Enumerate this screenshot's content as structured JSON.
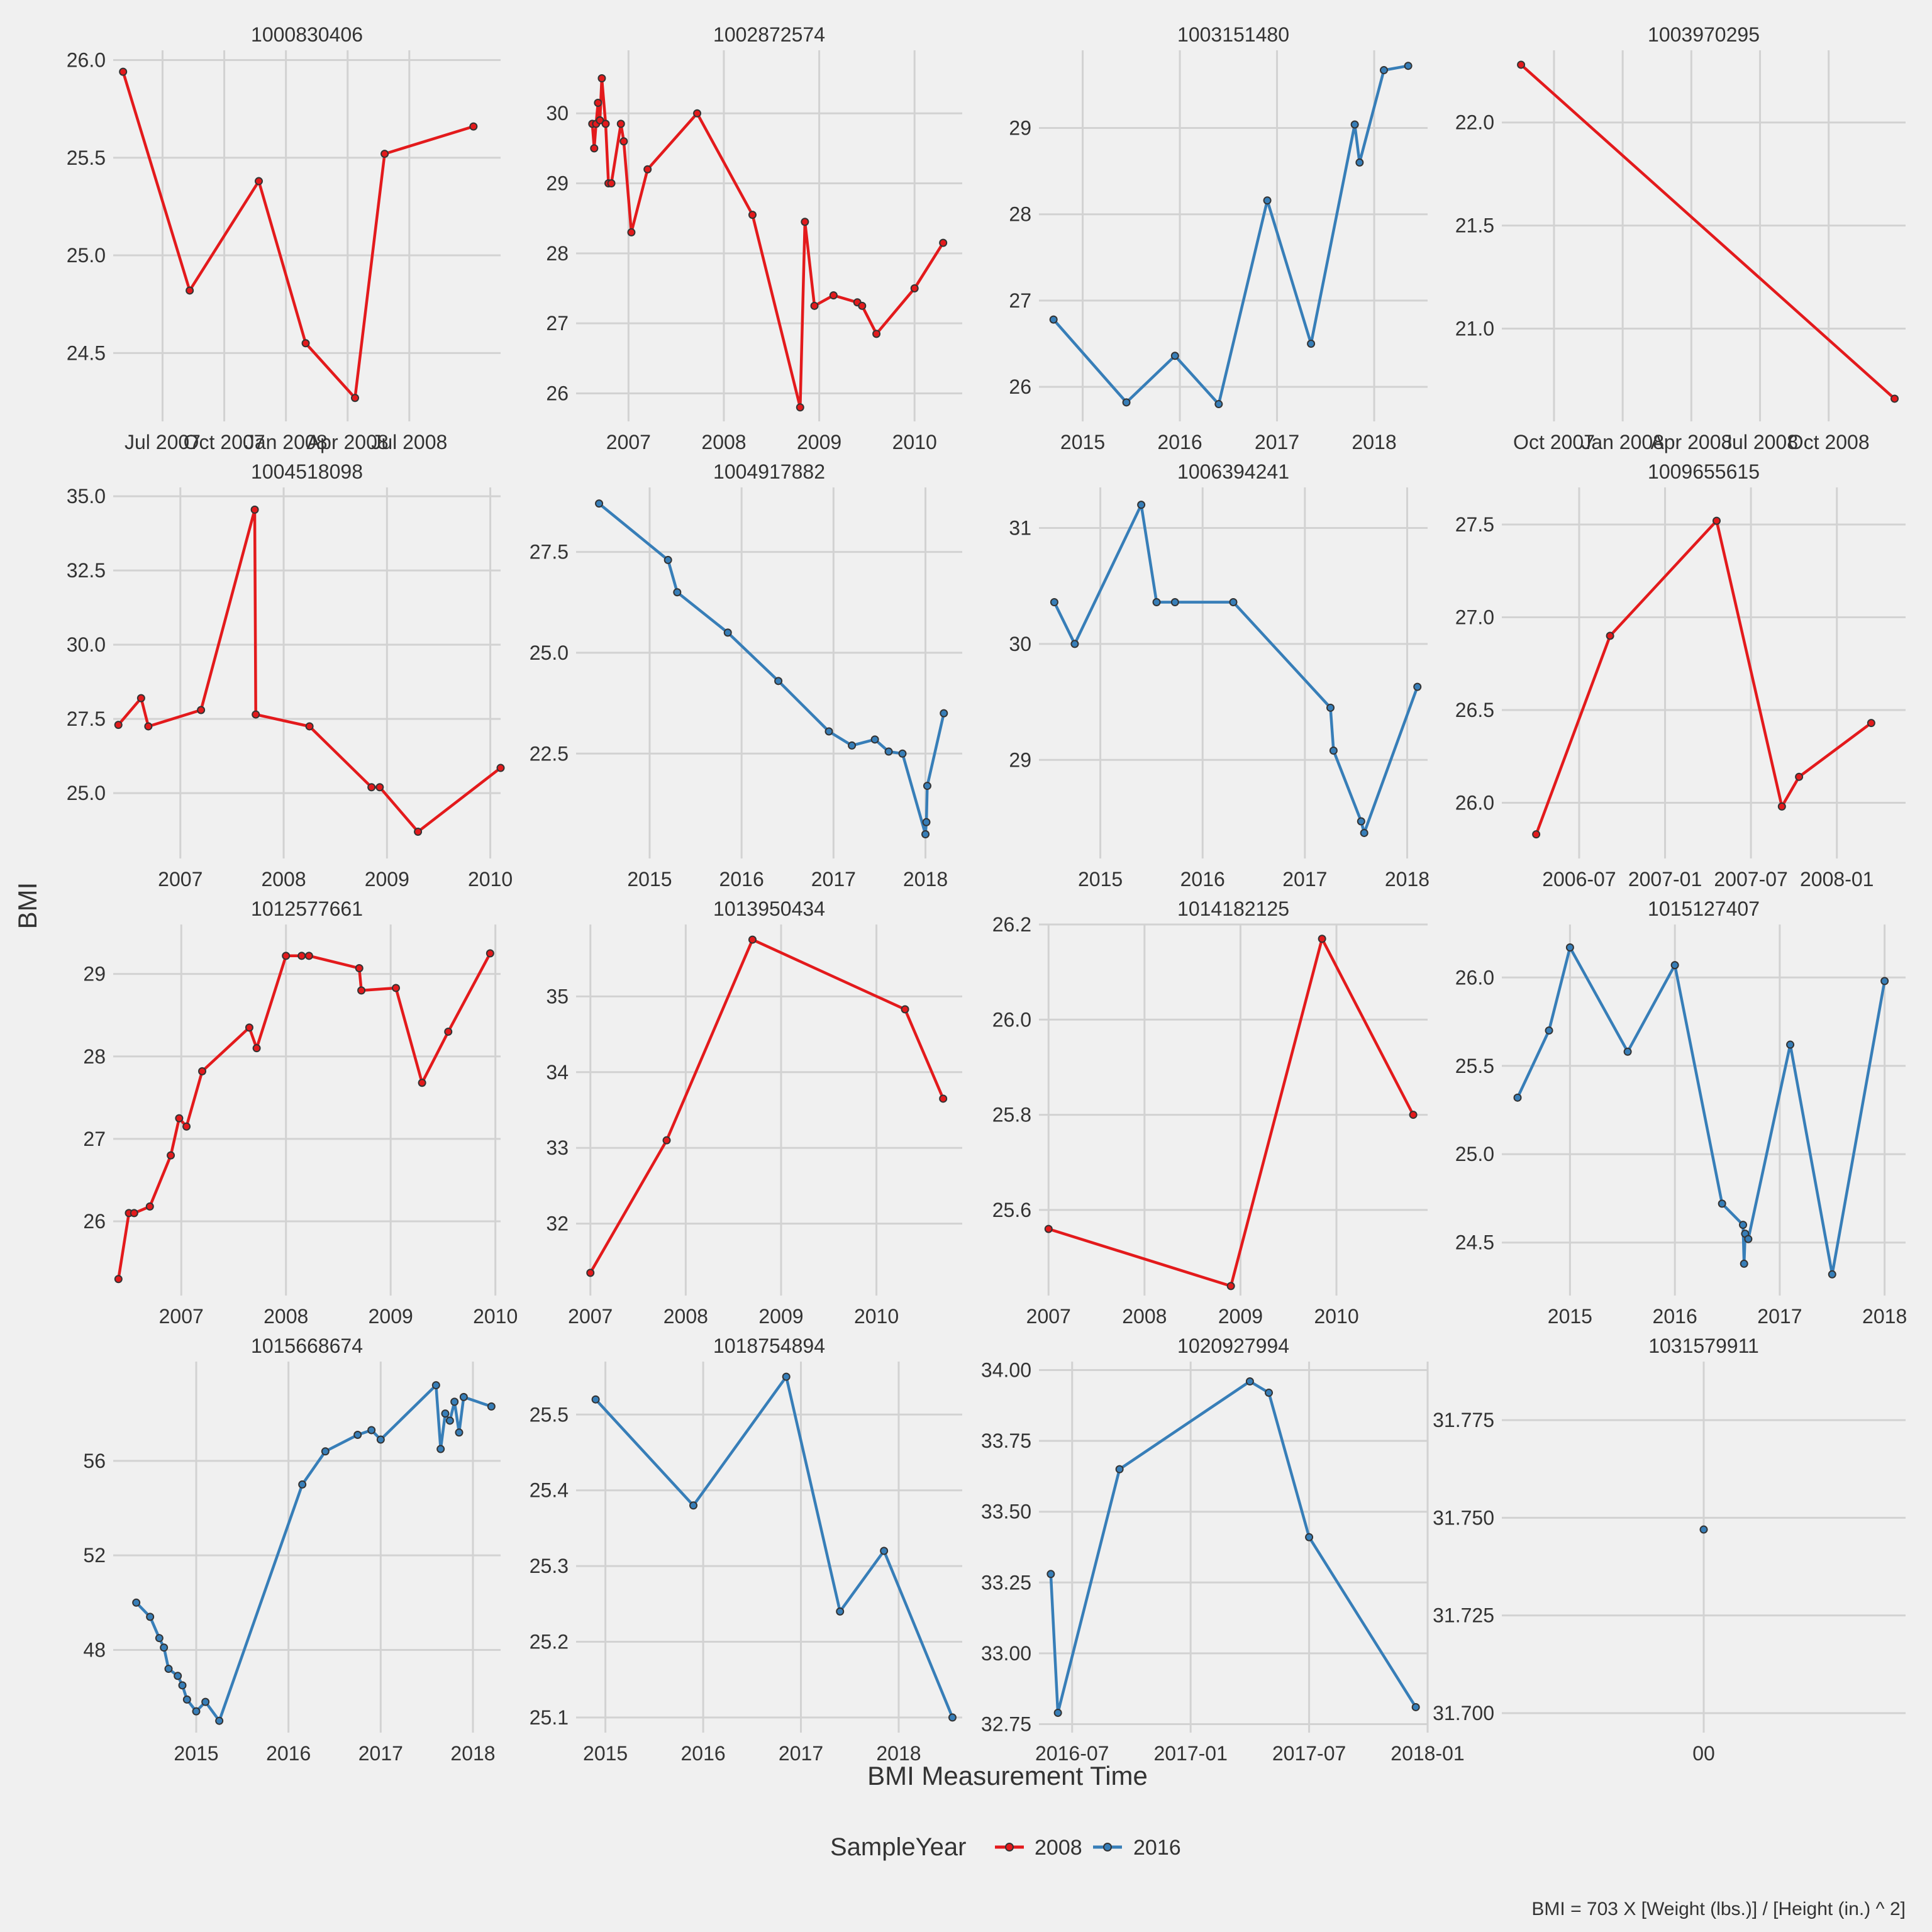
{
  "colors": {
    "2008": "#e31a1c",
    "2016": "#377eb8",
    "background": "#f0f0f0",
    "grid": "#d2d2d2",
    "point_outline": "#333333"
  },
  "legend": {
    "title": "SampleYear",
    "entries": [
      {
        "label": "2008",
        "color": "#e31a1c"
      },
      {
        "label": "2016",
        "color": "#377eb8"
      }
    ],
    "position": "bottom"
  },
  "labels": {
    "xlabel": "BMI Measurement Time",
    "ylabel": "BMI",
    "caption": "BMI = 703 X [Weight (lbs.)] / [Height (in.) ^ 2]"
  },
  "chart_data": [
    {
      "type": "line",
      "title": "1000830406",
      "series_name": "2008",
      "color": "#e31a1c",
      "xlim": [
        2007.29,
        2008.86
      ],
      "ylim": [
        24.15,
        26.05
      ],
      "x": [
        2007.33,
        2007.6,
        2007.88,
        2008.07,
        2008.27,
        2008.39,
        2008.75
      ],
      "y": [
        25.94,
        24.82,
        25.38,
        24.55,
        24.27,
        25.52,
        25.66
      ],
      "xticks": [
        2007.49,
        2007.74,
        2007.99,
        2008.24,
        2008.49
      ],
      "xticklabels": [
        "Jul 2007",
        "Oct 2007",
        "Jan 2008",
        "Apr 2008",
        "Jul 2008"
      ],
      "yticks": [
        24.5,
        25.0,
        25.5,
        26.0
      ],
      "yticklabels": [
        "24.5",
        "25.0",
        "25.5",
        "26.0"
      ]
    },
    {
      "type": "line",
      "title": "1002872574",
      "series_name": "2008",
      "color": "#e31a1c",
      "xlim": [
        2006.45,
        2010.5
      ],
      "ylim": [
        25.6,
        30.9
      ],
      "x": [
        2006.62,
        2006.64,
        2006.66,
        2006.68,
        2006.7,
        2006.72,
        2006.76,
        2006.79,
        2006.82,
        2006.92,
        2006.95,
        2007.03,
        2007.2,
        2007.72,
        2008.3,
        2008.8,
        2008.85,
        2008.95,
        2009.15,
        2009.4,
        2009.45,
        2009.6,
        2010.0,
        2010.3
      ],
      "y": [
        29.85,
        29.5,
        29.85,
        30.15,
        29.9,
        30.5,
        29.85,
        29.0,
        29.0,
        29.85,
        29.6,
        28.3,
        29.2,
        30.0,
        28.55,
        25.8,
        28.45,
        27.25,
        27.4,
        27.3,
        27.25,
        26.85,
        27.5,
        28.15
      ],
      "xticks": [
        2007,
        2008,
        2009,
        2010
      ],
      "xticklabels": [
        "2007",
        "2008",
        "2009",
        "2010"
      ],
      "yticks": [
        26,
        27,
        28,
        29,
        30
      ],
      "yticklabels": [
        "26",
        "27",
        "28",
        "29",
        "30"
      ]
    },
    {
      "type": "line",
      "title": "1003151480",
      "series_name": "2016",
      "color": "#377eb8",
      "xlim": [
        2014.55,
        2018.55
      ],
      "ylim": [
        25.6,
        29.9
      ],
      "x": [
        2014.7,
        2015.45,
        2015.95,
        2016.4,
        2016.9,
        2017.35,
        2017.8,
        2017.85,
        2018.1,
        2018.35
      ],
      "y": [
        26.78,
        25.82,
        26.36,
        25.8,
        28.16,
        26.5,
        29.04,
        28.6,
        29.67,
        29.72
      ],
      "xticks": [
        2015,
        2016,
        2017,
        2018
      ],
      "xticklabels": [
        "2015",
        "2016",
        "2017",
        "2018"
      ],
      "yticks": [
        26,
        27,
        28,
        29
      ],
      "yticklabels": [
        "26",
        "27",
        "28",
        "29"
      ]
    },
    {
      "type": "line",
      "title": "1003970295",
      "series_name": "2008",
      "color": "#e31a1c",
      "xlim": [
        2007.55,
        2009.02
      ],
      "ylim": [
        20.55,
        22.35
      ],
      "x": [
        2007.62,
        2008.98
      ],
      "y": [
        22.28,
        20.66
      ],
      "xticks": [
        2007.74,
        2007.99,
        2008.24,
        2008.49,
        2008.74
      ],
      "xticklabels": [
        "Oct 2007",
        "Jan 2008",
        "Apr 2008",
        "Jul 2008",
        "Oct 2008"
      ],
      "yticks": [
        21.0,
        21.5,
        22.0
      ],
      "yticklabels": [
        "21.0",
        "21.5",
        "22.0"
      ]
    },
    {
      "type": "line",
      "title": "1004518098",
      "series_name": "2008",
      "color": "#e31a1c",
      "xlim": [
        2006.35,
        2010.1
      ],
      "ylim": [
        22.8,
        35.3
      ],
      "x": [
        2006.4,
        2006.62,
        2006.69,
        2007.2,
        2007.72,
        2007.73,
        2008.25,
        2008.85,
        2008.93,
        2009.3,
        2010.1
      ],
      "y": [
        27.3,
        28.2,
        27.25,
        27.8,
        34.55,
        27.65,
        27.25,
        25.2,
        25.2,
        23.7,
        25.85
      ],
      "xticks": [
        2007,
        2008,
        2009,
        2010
      ],
      "xticklabels": [
        "2007",
        "2008",
        "2009",
        "2010"
      ],
      "yticks": [
        25.0,
        27.5,
        30.0,
        32.5,
        35.0
      ],
      "yticklabels": [
        "25.0",
        "27.5",
        "30.0",
        "32.5",
        "35.0"
      ]
    },
    {
      "type": "line",
      "title": "1004917882",
      "series_name": "2016",
      "color": "#377eb8",
      "xlim": [
        2014.2,
        2018.4
      ],
      "ylim": [
        19.9,
        29.1
      ],
      "x": [
        2014.45,
        2015.2,
        2015.3,
        2015.85,
        2016.4,
        2016.95,
        2017.2,
        2017.45,
        2017.6,
        2017.75,
        2018.0,
        2018.01,
        2018.02,
        2018.2
      ],
      "y": [
        28.7,
        27.3,
        26.5,
        25.5,
        24.3,
        23.05,
        22.7,
        22.85,
        22.55,
        22.5,
        20.5,
        20.8,
        21.7,
        23.5
      ],
      "xticks": [
        2015,
        2016,
        2017,
        2018
      ],
      "xticklabels": [
        "2015",
        "2016",
        "2017",
        "2018"
      ],
      "yticks": [
        22.5,
        25.0,
        27.5
      ],
      "yticklabels": [
        "22.5",
        "25.0",
        "27.5"
      ]
    },
    {
      "type": "line",
      "title": "1006394241",
      "series_name": "2016",
      "color": "#377eb8",
      "xlim": [
        2014.4,
        2018.2
      ],
      "ylim": [
        28.15,
        31.35
      ],
      "x": [
        2014.55,
        2014.75,
        2015.4,
        2015.55,
        2015.73,
        2016.3,
        2017.25,
        2017.28,
        2017.55,
        2017.58,
        2018.1
      ],
      "y": [
        30.36,
        30.0,
        31.2,
        30.36,
        30.36,
        30.36,
        29.45,
        29.08,
        28.47,
        28.37,
        29.63
      ],
      "xticks": [
        2015,
        2016,
        2017,
        2018
      ],
      "xticklabels": [
        "2015",
        "2016",
        "2017",
        "2018"
      ],
      "yticks": [
        29,
        30,
        31
      ],
      "yticklabels": [
        "29",
        "30",
        "31"
      ]
    },
    {
      "type": "line",
      "title": "1009655615",
      "series_name": "2008",
      "color": "#e31a1c",
      "xlim": [
        2006.05,
        2008.4
      ],
      "ylim": [
        25.7,
        27.7
      ],
      "x": [
        2006.25,
        2006.68,
        2007.3,
        2007.68,
        2007.78,
        2008.2
      ],
      "y": [
        25.83,
        26.9,
        27.52,
        25.98,
        26.14,
        26.43
      ],
      "xticks": [
        2006.5,
        2007.0,
        2007.5,
        2008.0
      ],
      "xticklabels": [
        "2006-07",
        "2007-01",
        "2007-07",
        "2008-01"
      ],
      "yticks": [
        26.0,
        26.5,
        27.0,
        27.5
      ],
      "yticklabels": [
        "26.0",
        "26.5",
        "27.0",
        "27.5"
      ]
    },
    {
      "type": "line",
      "title": "1012577661",
      "series_name": "2008",
      "color": "#e31a1c",
      "xlim": [
        2006.35,
        2010.05
      ],
      "ylim": [
        25.1,
        29.6
      ],
      "x": [
        2006.4,
        2006.5,
        2006.55,
        2006.7,
        2006.9,
        2006.98,
        2007.05,
        2007.2,
        2007.65,
        2007.72,
        2008.0,
        2008.15,
        2008.22,
        2008.7,
        2008.72,
        2009.05,
        2009.3,
        2009.55,
        2009.95
      ],
      "y": [
        25.3,
        26.1,
        26.1,
        26.18,
        26.8,
        27.25,
        27.15,
        27.82,
        28.35,
        28.1,
        29.22,
        29.22,
        29.22,
        29.07,
        28.8,
        28.83,
        27.68,
        28.3,
        29.25
      ],
      "xticks": [
        2007,
        2008,
        2009,
        2010
      ],
      "xticklabels": [
        "2007",
        "2008",
        "2009",
        "2010"
      ],
      "yticks": [
        26,
        27,
        28,
        29
      ],
      "yticklabels": [
        "26",
        "27",
        "28",
        "29"
      ]
    },
    {
      "type": "line",
      "title": "1013950434",
      "series_name": "2008",
      "color": "#e31a1c",
      "xlim": [
        2006.85,
        2010.9
      ],
      "ylim": [
        31.05,
        35.95
      ],
      "x": [
        2007.0,
        2007.8,
        2008.7,
        2010.3,
        2010.7
      ],
      "y": [
        31.35,
        33.1,
        35.75,
        34.83,
        33.65
      ],
      "xticks": [
        2007,
        2008,
        2009,
        2010
      ],
      "xticklabels": [
        "2007",
        "2008",
        "2009",
        "2010"
      ],
      "yticks": [
        32,
        33,
        34,
        35
      ],
      "yticklabels": [
        "32",
        "33",
        "34",
        "35"
      ]
    },
    {
      "type": "line",
      "title": "1014182125",
      "series_name": "2008",
      "color": "#e31a1c",
      "xlim": [
        2006.9,
        2010.95
      ],
      "ylim": [
        25.42,
        26.2
      ],
      "x": [
        2007.0,
        2008.9,
        2009.85,
        2010.8
      ],
      "y": [
        25.56,
        25.44,
        26.17,
        25.8
      ],
      "xticks": [
        2007,
        2008,
        2009,
        2010
      ],
      "xticklabels": [
        "2007",
        "2008",
        "2009",
        "2010"
      ],
      "yticks": [
        25.6,
        25.8,
        26.0,
        26.2
      ],
      "yticklabels": [
        "25.6",
        "25.8",
        "26.0",
        "26.2"
      ]
    },
    {
      "type": "line",
      "title": "1015127407",
      "series_name": "2016",
      "color": "#377eb8",
      "xlim": [
        2014.35,
        2018.2
      ],
      "ylim": [
        24.2,
        26.3
      ],
      "x": [
        2014.5,
        2014.8,
        2015.0,
        2015.55,
        2016.0,
        2016.45,
        2016.65,
        2016.66,
        2016.67,
        2016.7,
        2017.1,
        2017.5,
        2018.0
      ],
      "y": [
        25.32,
        25.7,
        26.17,
        25.58,
        26.07,
        24.72,
        24.6,
        24.38,
        24.55,
        24.52,
        25.62,
        24.32,
        25.98
      ],
      "xticks": [
        2015,
        2016,
        2017,
        2018
      ],
      "xticklabels": [
        "2015",
        "2016",
        "2017",
        "2018"
      ],
      "yticks": [
        24.5,
        25.0,
        25.5,
        26.0
      ],
      "yticklabels": [
        "24.5",
        "25.0",
        "25.5",
        "26.0"
      ]
    },
    {
      "type": "line",
      "title": "1015668674",
      "series_name": "2016",
      "color": "#377eb8",
      "xlim": [
        2014.1,
        2018.3
      ],
      "ylim": [
        44.5,
        60.2
      ],
      "x": [
        2014.35,
        2014.5,
        2014.6,
        2014.65,
        2014.7,
        2014.8,
        2014.85,
        2014.9,
        2015.0,
        2015.1,
        2015.25,
        2016.15,
        2016.4,
        2016.75,
        2016.9,
        2017.0,
        2017.6,
        2017.65,
        2017.7,
        2017.75,
        2017.8,
        2017.85,
        2017.9,
        2018.2
      ],
      "y": [
        50.0,
        49.4,
        48.5,
        48.1,
        47.2,
        46.9,
        46.5,
        45.9,
        45.4,
        45.8,
        45.0,
        55.0,
        56.4,
        57.1,
        57.3,
        56.9,
        59.2,
        56.5,
        58.0,
        57.7,
        58.5,
        57.2,
        58.7,
        58.3
      ],
      "xticks": [
        2015,
        2016,
        2017,
        2018
      ],
      "xticklabels": [
        "2015",
        "2016",
        "2017",
        "2018"
      ],
      "yticks": [
        48,
        52,
        56
      ],
      "yticklabels": [
        "48",
        "52",
        "56"
      ]
    },
    {
      "type": "line",
      "title": "1018754894",
      "series_name": "2016",
      "color": "#377eb8",
      "xlim": [
        2014.7,
        2018.65
      ],
      "ylim": [
        25.08,
        25.57
      ],
      "x": [
        2014.9,
        2015.9,
        2016.85,
        2017.4,
        2017.85,
        2018.55
      ],
      "y": [
        25.52,
        25.38,
        25.55,
        25.24,
        25.32,
        25.1
      ],
      "xticks": [
        2015,
        2016,
        2017,
        2018
      ],
      "xticklabels": [
        "2015",
        "2016",
        "2017",
        "2018"
      ],
      "yticks": [
        25.1,
        25.2,
        25.3,
        25.4,
        25.5
      ],
      "yticklabels": [
        "25.1",
        "25.2",
        "25.3",
        "25.4",
        "25.5"
      ]
    },
    {
      "type": "line",
      "title": "1020927994",
      "series_name": "2016",
      "color": "#377eb8",
      "xlim": [
        2016.36,
        2018.0
      ],
      "ylim": [
        32.72,
        34.03
      ],
      "x": [
        2016.41,
        2016.44,
        2016.7,
        2017.25,
        2017.33,
        2017.5,
        2017.95
      ],
      "y": [
        33.28,
        32.79,
        33.65,
        33.96,
        33.92,
        33.41,
        32.81
      ],
      "xticks": [
        2016.5,
        2017.0,
        2017.5,
        2018.0
      ],
      "xticklabels": [
        "2016-07",
        "2017-01",
        "2017-07",
        "2018-01"
      ],
      "yticks": [
        32.75,
        33.0,
        33.25,
        33.5,
        33.75,
        34.0
      ],
      "yticklabels": [
        "32.75",
        "33.00",
        "33.25",
        "33.50",
        "33.75",
        "34.00"
      ]
    },
    {
      "type": "scatter",
      "title": "1031579911",
      "series_name": "2016",
      "color": "#377eb8",
      "xlim": [
        -1,
        1
      ],
      "ylim": [
        31.695,
        31.79
      ],
      "x": [
        0
      ],
      "y": [
        31.747
      ],
      "xticks": [
        0
      ],
      "xticklabels": [
        "00"
      ],
      "yticks": [
        31.7,
        31.725,
        31.75,
        31.775
      ],
      "yticklabels": [
        "31.700",
        "31.725",
        "31.750",
        "31.775"
      ]
    }
  ]
}
